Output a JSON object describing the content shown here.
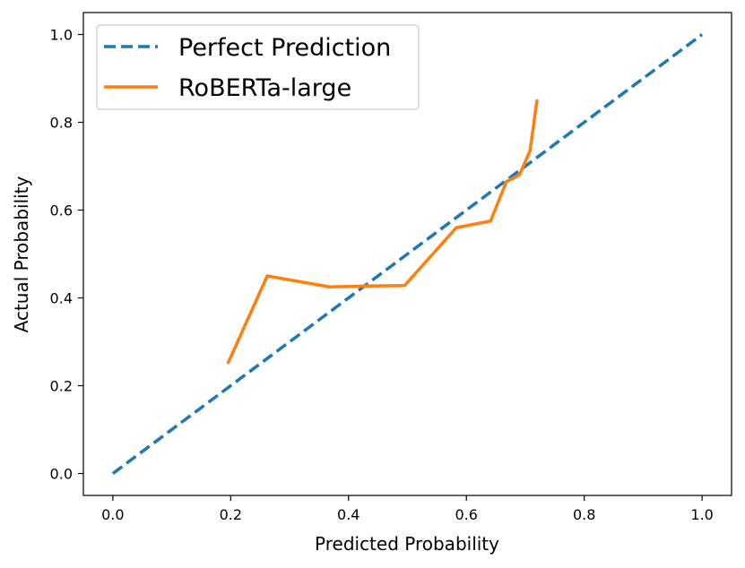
{
  "chart_data": {
    "type": "line",
    "xlabel": "Predicted Probability",
    "ylabel": "Actual Probability",
    "xlim": [
      -0.05,
      1.05
    ],
    "ylim": [
      -0.05,
      1.05
    ],
    "xticks": [
      0.0,
      0.2,
      0.4,
      0.6,
      0.8,
      1.0
    ],
    "yticks": [
      0.0,
      0.2,
      0.4,
      0.6,
      0.8,
      1.0
    ],
    "xtick_labels": [
      "0.0",
      "0.2",
      "0.4",
      "0.6",
      "0.8",
      "1.0"
    ],
    "ytick_labels": [
      "0.0",
      "0.2",
      "0.4",
      "0.6",
      "0.8",
      "1.0"
    ],
    "grid": false,
    "legend_position": "top-left",
    "series": [
      {
        "name": "Perfect Prediction",
        "style": "dashed",
        "color": "#1f77b4",
        "x": [
          0.0,
          1.0
        ],
        "y": [
          0.0,
          1.0
        ]
      },
      {
        "name": "RoBERTa-large",
        "style": "solid",
        "color": "#ff7f0e",
        "x": [
          0.195,
          0.262,
          0.368,
          0.432,
          0.495,
          0.583,
          0.641,
          0.668,
          0.69,
          0.708,
          0.72
        ],
        "y": [
          0.25,
          0.45,
          0.425,
          0.427,
          0.428,
          0.56,
          0.575,
          0.665,
          0.68,
          0.735,
          0.852
        ]
      }
    ]
  }
}
